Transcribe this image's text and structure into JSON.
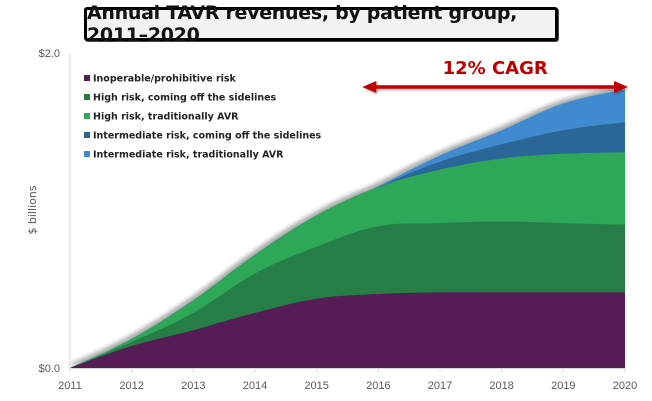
{
  "chart_data": {
    "type": "area",
    "stacked": true,
    "title": "Annual TAVR revenues, by patient group, 2011–2020",
    "xlabel": "",
    "ylabel": "$ billions",
    "x": [
      2011,
      2012,
      2013,
      2014,
      2015,
      2016,
      2017,
      2018,
      2019,
      2020
    ],
    "x_tick_labels": [
      "2011",
      "2012",
      "2013",
      "2014",
      "2015",
      "2016",
      "2017",
      "2018",
      "2019",
      "2020"
    ],
    "ylim": [
      0,
      2.0
    ],
    "y_tick_labels": [
      {
        "value": 0,
        "label": "$0.0"
      },
      {
        "value": 2.0,
        "label": "$2.0"
      }
    ],
    "grid": false,
    "legend_position": "top-left",
    "series": [
      {
        "name": "Inoperable/prohibitive risk",
        "color": "#541e57",
        "values": [
          0,
          0.14,
          0.24,
          0.35,
          0.44,
          0.47,
          0.48,
          0.48,
          0.48,
          0.48
        ]
      },
      {
        "name": "High risk, coming off the sidelines",
        "color": "#267d44",
        "values": [
          0,
          0.025,
          0.11,
          0.25,
          0.33,
          0.43,
          0.44,
          0.45,
          0.44,
          0.43
        ]
      },
      {
        "name": "High risk, traditionally AVR",
        "color": "#2ea859",
        "values": [
          0,
          0.02,
          0.08,
          0.12,
          0.2,
          0.25,
          0.34,
          0.4,
          0.44,
          0.46
        ]
      },
      {
        "name": "Intermediate risk, coming off the sidelines",
        "color": "#2b6698",
        "values": [
          0,
          0,
          0,
          0,
          0,
          0.0,
          0.05,
          0.09,
          0.15,
          0.19
        ]
      },
      {
        "name": "Intermediate risk, traditionally AVR",
        "color": "#418ad0",
        "values": [
          0,
          0,
          0,
          0,
          0,
          0.005,
          0.04,
          0.09,
          0.17,
          0.21
        ]
      }
    ],
    "annotations": [
      {
        "text": "12% CAGR",
        "type": "double-arrow",
        "from_x": 2016,
        "to_x": 2020,
        "color": "#c00000"
      }
    ]
  }
}
